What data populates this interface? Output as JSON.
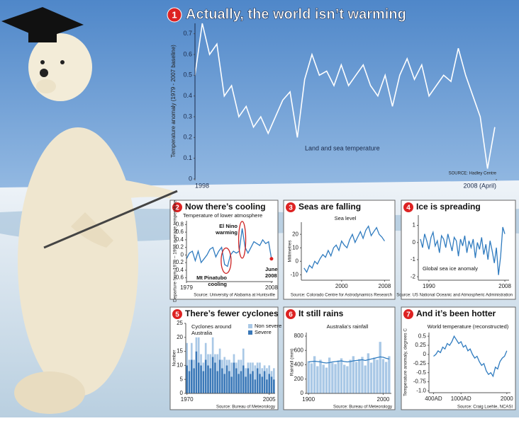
{
  "chart_data": [
    {
      "type": "line",
      "badge": "1",
      "title": "Actually, the world isn’t warming",
      "y_label": "Temperature anomaly (1979 - 2007 baseline)",
      "annotations": [
        [
          "Land and sea temperature"
        ]
      ],
      "source": "SOURCE: Hadley Centre",
      "color": "#ffffff",
      "x": [
        1998,
        1998.25,
        1998.5,
        1998.75,
        1999,
        1999.25,
        1999.5,
        1999.75,
        2000,
        2000.25,
        2000.5,
        2000.75,
        2001,
        2001.25,
        2001.5,
        2001.75,
        2002,
        2002.25,
        2002.5,
        2002.75,
        2003,
        2003.25,
        2003.5,
        2003.75,
        2004,
        2004.25,
        2004.5,
        2004.75,
        2005,
        2005.25,
        2005.5,
        2005.75,
        2006,
        2006.25,
        2006.5,
        2006.75,
        2007,
        2007.25,
        2007.5,
        2007.75,
        2008,
        2008.25
      ],
      "values": [
        0.5,
        0.75,
        0.6,
        0.65,
        0.4,
        0.45,
        0.3,
        0.35,
        0.25,
        0.3,
        0.22,
        0.3,
        0.38,
        0.42,
        0.2,
        0.48,
        0.6,
        0.5,
        0.52,
        0.45,
        0.55,
        0.45,
        0.5,
        0.55,
        0.45,
        0.4,
        0.5,
        0.35,
        0.5,
        0.58,
        0.48,
        0.55,
        0.4,
        0.45,
        0.5,
        0.47,
        0.63,
        0.5,
        0.4,
        0.3,
        0.05,
        0.25
      ],
      "xlim": [
        1998,
        2008.3
      ],
      "xticks": [
        1998,
        {
          "value": 2008.3,
          "label": "2008 (April)"
        }
      ],
      "ylim": [
        0,
        0.75
      ],
      "yticks": [
        0,
        0.1,
        0.2,
        0.3,
        0.4,
        0.5,
        0.6,
        0.7
      ]
    },
    {
      "type": "line",
      "badge": "2",
      "title": "Now there’s cooling",
      "subtitle": "Temperature of lower atmosphere",
      "y_label": "Departure from 1979 – 1998 average temperature",
      "annotations": [
        [
          "El Nino",
          "warming"
        ],
        [
          "Mt Pinatubo",
          "cooling"
        ],
        [
          "June",
          "2008"
        ]
      ],
      "source": "Source: University of Alabama at Huntsville",
      "color": "#2f7bbf",
      "x": [
        1979,
        1980,
        1981,
        1982,
        1983,
        1984,
        1985,
        1986,
        1987,
        1988,
        1989,
        1990,
        1991,
        1992,
        1993,
        1994,
        1995,
        1996,
        1997,
        1998,
        1999,
        2000,
        2001,
        2002,
        2003,
        2004,
        2005,
        2006,
        2007,
        2008
      ],
      "values": [
        -0.1,
        0.05,
        0.1,
        -0.15,
        0.1,
        -0.2,
        -0.1,
        0.0,
        0.15,
        0.2,
        -0.05,
        0.1,
        0.2,
        -0.25,
        -0.3,
        0.0,
        0.1,
        0.05,
        0.1,
        0.7,
        0.2,
        0.05,
        0.2,
        0.35,
        0.3,
        0.25,
        0.4,
        0.3,
        0.35,
        -0.1
      ],
      "xlim": [
        1979,
        2008.5
      ],
      "xticks": [
        1979,
        2008
      ],
      "ylim": [
        -0.7,
        0.9
      ],
      "yticks": [
        -0.6,
        -0.4,
        -0.2,
        0,
        0.2,
        0.4,
        0.6,
        0.8
      ]
    },
    {
      "type": "line",
      "badge": "3",
      "title": "Seas are falling",
      "subtitle": "Sea level",
      "y_label": "Millimetres",
      "source": "Source: Colorado Centre for Astrodynamics Research",
      "color": "#2f7bbf",
      "x": [
        1993,
        1993.5,
        1994,
        1994.5,
        1995,
        1995.5,
        1996,
        1996.5,
        1997,
        1997.5,
        1998,
        1998.5,
        1999,
        1999.5,
        2000,
        2000.5,
        2001,
        2001.5,
        2002,
        2002.5,
        2003,
        2003.5,
        2004,
        2004.5,
        2005,
        2005.5,
        2006,
        2006.5,
        2007,
        2007.5,
        2008
      ],
      "values": [
        -5,
        -8,
        -3,
        -5,
        0,
        -2,
        2,
        5,
        3,
        8,
        4,
        10,
        12,
        8,
        15,
        12,
        10,
        16,
        20,
        14,
        18,
        22,
        17,
        23,
        26,
        19,
        22,
        25,
        20,
        18,
        15
      ],
      "xlim": [
        1992.5,
        2009
      ],
      "xticks": [
        2000,
        2008
      ],
      "ylim": [
        -14,
        29
      ],
      "yticks": [
        -10,
        0,
        10,
        20
      ]
    },
    {
      "type": "line",
      "badge": "4",
      "title": "Ice is spreading",
      "annotations": [
        [
          "Global sea ice anomaly"
        ]
      ],
      "source": "Source: US National Oceanic and Atmospheric Administration",
      "color": "#2f7bbf",
      "x": [
        1988,
        1988.5,
        1989,
        1989.5,
        1990,
        1990.5,
        1991,
        1991.5,
        1992,
        1992.5,
        1993,
        1993.5,
        1994,
        1994.5,
        1995,
        1995.5,
        1996,
        1996.5,
        1997,
        1997.5,
        1998,
        1998.5,
        1999,
        1999.5,
        2000,
        2000.5,
        2001,
        2001.5,
        2002,
        2002.5,
        2003,
        2003.5,
        2004,
        2004.5,
        2005,
        2005.5,
        2006,
        2006.5,
        2007,
        2007.5,
        2008
      ],
      "values": [
        0.2,
        -0.3,
        0.5,
        0.1,
        -0.4,
        0.3,
        0.6,
        -0.2,
        0.1,
        -0.6,
        0.4,
        0.2,
        -0.3,
        0.5,
        0.0,
        -0.5,
        0.3,
        0.1,
        -0.8,
        0.2,
        -0.2,
        0.4,
        -0.6,
        0.1,
        -0.3,
        0.2,
        -0.9,
        0.0,
        -0.4,
        0.3,
        -0.7,
        -0.1,
        -1.0,
        0.1,
        -0.5,
        -1.2,
        -0.3,
        -1.9,
        -0.8,
        0.9,
        0.5
      ],
      "xlim": [
        1987.5,
        2009
      ],
      "xticks": [
        1990,
        2008
      ],
      "ylim": [
        -2.2,
        1.6
      ],
      "yticks": [
        -2,
        -1,
        0,
        1
      ]
    },
    {
      "type": "bar",
      "stacked": true,
      "badge": "5",
      "title": "There’s fewer cyclones",
      "subtitle": [
        "Cyclones around",
        "Australia"
      ],
      "y_label": "Number",
      "source": "Source: Bureau of Meteorology",
      "x": [
        1970,
        1971,
        1972,
        1973,
        1974,
        1975,
        1976,
        1977,
        1978,
        1979,
        1980,
        1981,
        1982,
        1983,
        1984,
        1985,
        1986,
        1987,
        1988,
        1989,
        1990,
        1991,
        1992,
        1993,
        1994,
        1995,
        1996,
        1997,
        1998,
        1999,
        2000,
        2001,
        2002,
        2003,
        2004,
        2005,
        2006,
        2007
      ],
      "series": [
        {
          "name": "Non severe",
          "color": "#a9c8e6",
          "values": [
            8,
            4,
            6,
            3,
            5,
            9,
            4,
            3,
            6,
            4,
            5,
            7,
            3,
            6,
            4,
            3,
            6,
            2,
            4,
            5,
            3,
            2,
            5,
            4,
            6,
            3,
            2,
            4,
            3,
            5,
            2,
            4,
            3,
            2,
            4,
            3,
            2,
            4
          ]
        },
        {
          "name": "Severe",
          "color": "#3a78b8",
          "values": [
            10,
            8,
            12,
            9,
            15,
            11,
            10,
            8,
            12,
            10,
            9,
            13,
            11,
            8,
            12,
            9,
            7,
            10,
            8,
            6,
            11,
            9,
            7,
            8,
            10,
            6,
            9,
            7,
            8,
            5,
            9,
            7,
            6,
            8,
            5,
            7,
            6,
            5
          ]
        }
      ],
      "xlim": [
        1969.5,
        2007.5
      ],
      "xticks": [
        1970,
        2005
      ],
      "ylim": [
        0,
        25
      ],
      "yticks": [
        0,
        5,
        10,
        15,
        20,
        25
      ]
    },
    {
      "type": "bar",
      "badge": "6",
      "title": "It still rains",
      "subtitle": "Australia’s rainfall",
      "y_label": "Rainfall (mm)",
      "source": "Source: Bureau of Meteorology",
      "bar_width": 3.2,
      "x": [
        1900,
        1904,
        1908,
        1912,
        1916,
        1920,
        1924,
        1928,
        1932,
        1936,
        1940,
        1944,
        1948,
        1952,
        1956,
        1960,
        1964,
        1968,
        1972,
        1976,
        1980,
        1984,
        1988,
        1992,
        1996,
        2000,
        2004,
        2008
      ],
      "series": [
        {
          "type": "bar",
          "color": "#a9c8e6",
          "values": [
            450,
            420,
            520,
            380,
            470,
            400,
            360,
            500,
            430,
            410,
            460,
            490,
            400,
            380,
            470,
            520,
            440,
            480,
            510,
            390,
            560,
            430,
            500,
            470,
            720,
            480,
            440,
            520
          ]
        },
        {
          "type": "line",
          "color": "#2f7bbf",
          "values": [
            440,
            445,
            450,
            445,
            440,
            430,
            425,
            430,
            440,
            445,
            450,
            455,
            445,
            440,
            445,
            455,
            460,
            465,
            470,
            460,
            470,
            480,
            490,
            500,
            510,
            505,
            490,
            480
          ]
        }
      ],
      "xlim": [
        1897,
        2011
      ],
      "xticks": [
        1900,
        2000
      ],
      "ylim": [
        0,
        850
      ],
      "yticks": [
        0,
        200,
        400,
        600,
        800
      ]
    },
    {
      "type": "line",
      "badge": "7",
      "title": "And it’s been hotter",
      "subtitle": "World temperature (reconstructed)",
      "y_label": "Temperature anomaly, degrees C",
      "source": "Source: Craig Loehle, NCASI",
      "color": "#2f7bbf",
      "x": [
        400,
        450,
        500,
        550,
        600,
        650,
        700,
        750,
        800,
        850,
        900,
        950,
        1000,
        1050,
        1100,
        1150,
        1200,
        1250,
        1300,
        1350,
        1400,
        1450,
        1500,
        1550,
        1600,
        1650,
        1700,
        1750,
        1800,
        1850,
        1900,
        1950,
        2000
      ],
      "values": [
        -0.05,
        0.0,
        0.1,
        0.05,
        0.2,
        0.15,
        0.3,
        0.25,
        0.35,
        0.5,
        0.4,
        0.3,
        0.35,
        0.2,
        0.25,
        0.1,
        0.15,
        0.0,
        -0.1,
        -0.05,
        -0.2,
        -0.3,
        -0.25,
        -0.45,
        -0.55,
        -0.5,
        -0.6,
        -0.35,
        -0.4,
        -0.2,
        -0.1,
        -0.05,
        0.1
      ],
      "xlim": [
        300,
        2080
      ],
      "xticks": [
        {
          "value": 400,
          "label": "400AD"
        },
        {
          "value": 1000,
          "label": "1000AD"
        },
        2000
      ],
      "ylim": [
        -1.05,
        0.6
      ],
      "yticks": [
        {
          "value": -1,
          "label": "-1.0"
        },
        -0.75,
        -0.5,
        -0.25,
        0,
        0.25,
        0.5
      ]
    }
  ]
}
